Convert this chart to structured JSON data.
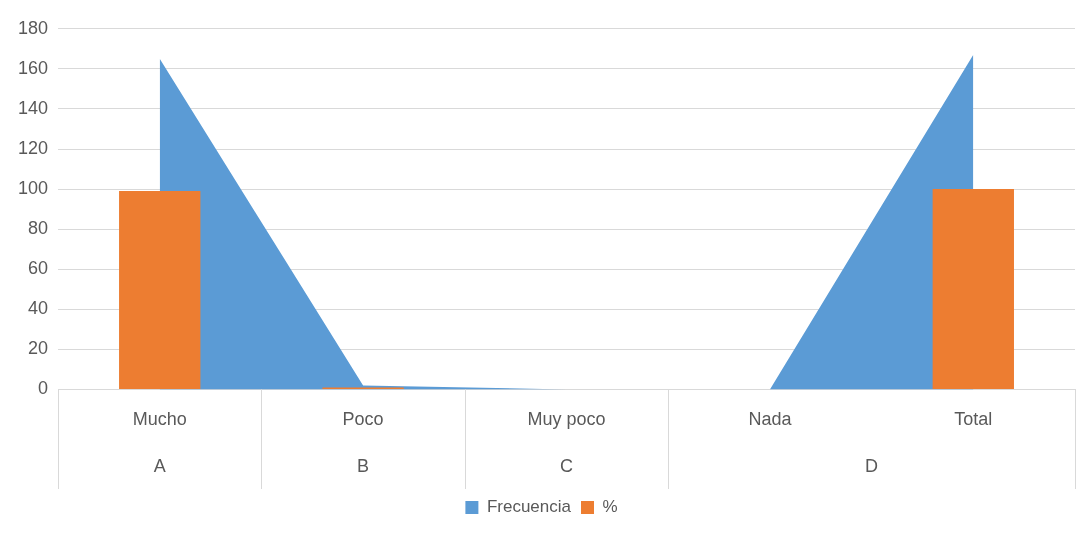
{
  "chart_data": {
    "type": "bar",
    "categories": [
      "Mucho",
      "Poco",
      "Muy poco",
      "Nada",
      "Total"
    ],
    "series": [
      {
        "name": "Frecuencia",
        "type": "area",
        "color": "#5b9bd5",
        "values": [
          165,
          2,
          0,
          0,
          167
        ]
      },
      {
        "name": "%",
        "color": "#ed7d31",
        "values": [
          99,
          1,
          0,
          0,
          100
        ]
      }
    ],
    "ylim": [
      0,
      180
    ],
    "yticks": [
      0,
      20,
      40,
      60,
      80,
      100,
      120,
      140,
      160,
      180
    ],
    "grid": "y",
    "legend": "bottom",
    "annotations": [
      "A",
      "B",
      "C",
      "D"
    ]
  }
}
